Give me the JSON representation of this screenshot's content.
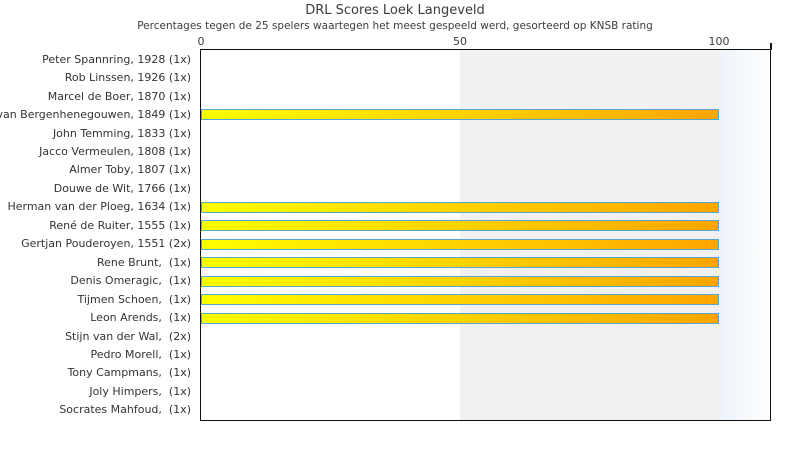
{
  "title": "DRL Scores Loek Langeveld",
  "subtitle": "Percentages tegen de 25 spelers waartegen het meest gespeeld werd, gesorteerd op KNSB rating",
  "chart_data": {
    "type": "bar",
    "orientation": "horizontal",
    "title": "DRL Scores Loek Langeveld",
    "subtitle": "Percentages tegen de 25 spelers waartegen het meest gespeeld werd, gesorteerd op KNSB rating",
    "xlabel": "",
    "ylabel": "",
    "xlim": [
      0,
      110
    ],
    "xticks": [
      0,
      50,
      100
    ],
    "grid": false,
    "legend": false,
    "categories": [
      "Peter Spannring, 1928 (1x)",
      "Rob Linssen, 1926 (1x)",
      "Marcel de Boer, 1870 (1x)",
      "van Bergenhenegouwen, 1849 (1x)",
      "John Temming, 1833 (1x)",
      "Jacco Vermeulen, 1808 (1x)",
      "Almer Toby, 1807 (1x)",
      "Douwe de Wit, 1766 (1x)",
      "Herman van der Ploeg, 1634 (1x)",
      "René de Ruiter, 1555 (1x)",
      "Gertjan Pouderoyen, 1551 (2x)",
      "Rene Brunt,  (1x)",
      "Denis Omeragic,  (1x)",
      "Tijmen Schoen,  (1x)",
      "Leon Arends,  (1x)",
      "Stijn van der Wal,  (2x)",
      "Pedro Morell,  (1x)",
      "Tony Campmans,  (1x)",
      "Joly Himpers,  (1x)",
      "Socrates Mahfoud,  (1x)"
    ],
    "values": [
      0,
      0,
      0,
      100,
      0,
      0,
      0,
      0,
      100,
      100,
      100,
      100,
      100,
      100,
      100,
      0,
      0,
      0,
      0,
      0
    ],
    "colors": {
      "bar_gradient_start": "#ffff00",
      "bar_gradient_end": "#ffa500",
      "bar_border": "#55a5d8",
      "band_50_100": "#f1f1f1",
      "band_over_100_start": "#edf4fa",
      "band_over_100_end": "#fefefe",
      "plot_border": "#101010",
      "text": "#3c3c3c"
    }
  }
}
